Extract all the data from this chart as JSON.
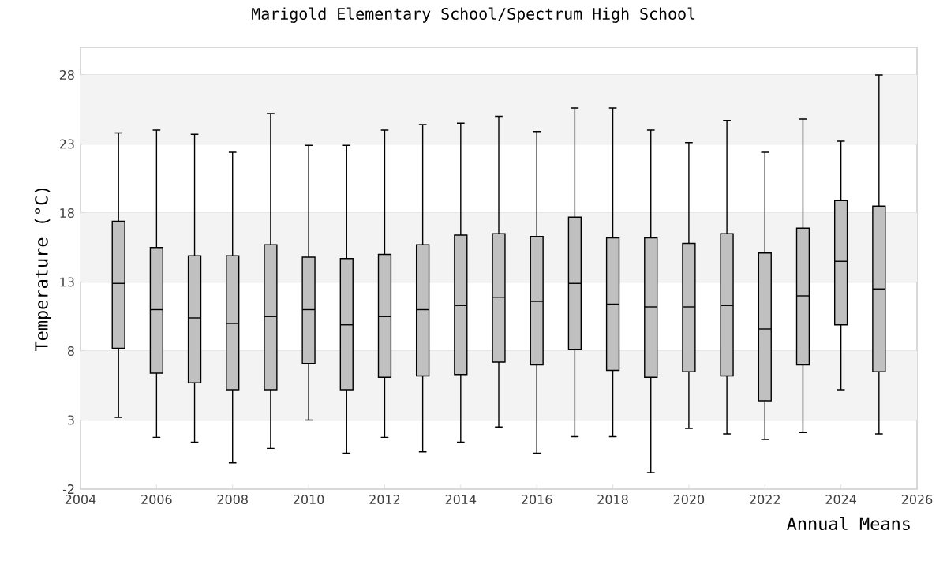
{
  "chart_data": {
    "type": "box",
    "title": "Marigold Elementary School/Spectrum High School",
    "xlabel": "Annual Means",
    "ylabel": "Temperature (°C)",
    "x": [
      2005,
      2006,
      2007,
      2008,
      2009,
      2010,
      2011,
      2012,
      2013,
      2014,
      2015,
      2016,
      2017,
      2018,
      2019,
      2020,
      2021,
      2022,
      2023,
      2024,
      2025
    ],
    "color": "#c0c0c0",
    "boxes": [
      {
        "low": 3.2,
        "q1": 8.2,
        "median": 12.9,
        "q3": 17.4,
        "high": 23.8
      },
      {
        "low": 1.75,
        "q1": 6.4,
        "median": 11.0,
        "q3": 15.5,
        "high": 24.0
      },
      {
        "low": 1.4,
        "q1": 5.7,
        "median": 10.4,
        "q3": 14.9,
        "high": 23.7
      },
      {
        "low": -0.1,
        "q1": 5.2,
        "median": 10.0,
        "q3": 14.9,
        "high": 22.4
      },
      {
        "low": 0.95,
        "q1": 5.2,
        "median": 10.5,
        "q3": 15.7,
        "high": 25.2
      },
      {
        "low": 3.0,
        "q1": 7.1,
        "median": 11.0,
        "q3": 14.8,
        "high": 22.9
      },
      {
        "low": 0.6,
        "q1": 5.2,
        "median": 9.9,
        "q3": 14.7,
        "high": 22.9
      },
      {
        "low": 1.75,
        "q1": 6.1,
        "median": 10.5,
        "q3": 15.0,
        "high": 24.0
      },
      {
        "low": 0.7,
        "q1": 6.2,
        "median": 11.0,
        "q3": 15.7,
        "high": 24.4
      },
      {
        "low": 1.4,
        "q1": 6.3,
        "median": 11.3,
        "q3": 16.4,
        "high": 24.5
      },
      {
        "low": 2.5,
        "q1": 7.2,
        "median": 11.9,
        "q3": 16.5,
        "high": 25.0
      },
      {
        "low": 0.6,
        "q1": 7.0,
        "median": 11.6,
        "q3": 16.3,
        "high": 23.9
      },
      {
        "low": 1.8,
        "q1": 8.1,
        "median": 12.9,
        "q3": 17.7,
        "high": 25.6
      },
      {
        "low": 1.8,
        "q1": 6.6,
        "median": 11.4,
        "q3": 16.2,
        "high": 25.6
      },
      {
        "low": -0.8,
        "q1": 6.1,
        "median": 11.2,
        "q3": 16.2,
        "high": 24.0
      },
      {
        "low": 2.4,
        "q1": 6.5,
        "median": 11.2,
        "q3": 15.8,
        "high": 23.1
      },
      {
        "low": 2.0,
        "q1": 6.2,
        "median": 11.3,
        "q3": 16.5,
        "high": 24.7
      },
      {
        "low": 1.6,
        "q1": 4.4,
        "median": 9.6,
        "q3": 15.1,
        "high": 22.4
      },
      {
        "low": 2.1,
        "q1": 7.0,
        "median": 12.0,
        "q3": 16.9,
        "high": 24.8
      },
      {
        "low": 5.2,
        "q1": 9.9,
        "median": 14.5,
        "q3": 18.9,
        "high": 23.2
      },
      {
        "low": 2.0,
        "q1": 6.5,
        "median": 12.5,
        "q3": 18.5,
        "high": 28.0
      }
    ],
    "xlim": [
      2004,
      2026
    ],
    "xticks": [
      2004,
      2006,
      2008,
      2010,
      2012,
      2014,
      2016,
      2018,
      2020,
      2022,
      2024,
      2026
    ],
    "ylim": [
      -2,
      30
    ],
    "yticks": [
      -2,
      3,
      8,
      13,
      18,
      23,
      28
    ],
    "grid": "y",
    "bands": [
      {
        "axis": "y",
        "from": 3,
        "to": 8,
        "color": "#f3f3f3"
      },
      {
        "axis": "y",
        "from": 13,
        "to": 18,
        "color": "#f3f3f3"
      },
      {
        "axis": "y",
        "from": 23,
        "to": 28,
        "color": "#f3f3f3"
      }
    ]
  }
}
